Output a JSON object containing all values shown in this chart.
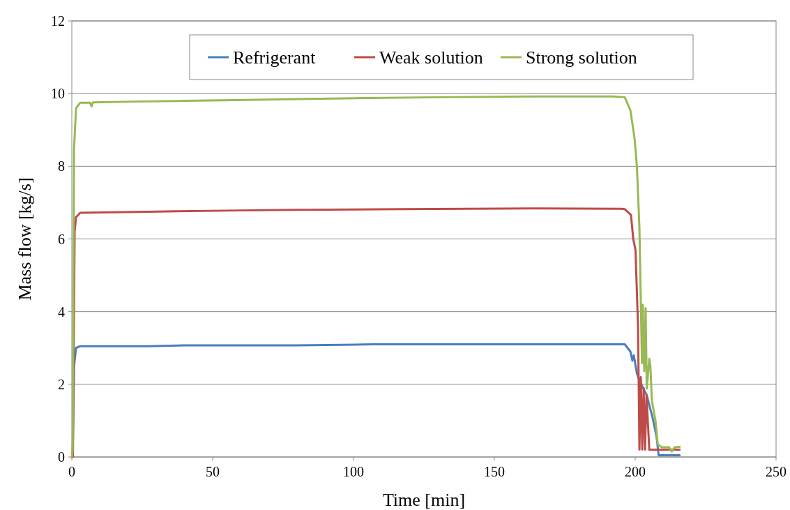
{
  "chart_data": {
    "type": "line",
    "xlabel": "Time [min]",
    "ylabel": "Mass flow [kg/s]",
    "xlim": [
      0,
      250
    ],
    "xticks": [
      0,
      50,
      100,
      150,
      200,
      250
    ],
    "ylim": [
      0,
      12
    ],
    "yticks": [
      0,
      2,
      4,
      6,
      8,
      10,
      12
    ],
    "grid": "y",
    "legend": "top",
    "marker": "none",
    "line_style": "solid",
    "series": [
      {
        "name": "Refrigerant",
        "color": "#4a7ebb",
        "x": [
          0,
          0.3,
          0.8,
          1.5,
          3,
          27,
          40,
          80,
          107,
          150,
          196.3,
          198.3,
          199,
          199.5,
          200.6,
          201.5,
          204.1,
          206.2,
          207.6,
          208.3,
          212,
          215.8
        ],
        "values": [
          0.1,
          0.1,
          2.5,
          3.0,
          3.05,
          3.05,
          3.07,
          3.07,
          3.1,
          3.1,
          3.1,
          2.9,
          2.65,
          2.8,
          2.3,
          2.1,
          1.7,
          1.07,
          0.55,
          0.05,
          0.05,
          0.05
        ]
      },
      {
        "name": "Weak solution",
        "color": "#be4b48",
        "x": [
          0,
          0.4,
          1,
          1.5,
          3,
          27,
          55,
          80,
          117,
          165,
          195,
          196.3,
          198.5,
          199.3,
          200.1,
          201,
          201.5,
          202,
          202.5,
          203,
          203.5,
          204,
          205,
          210,
          215.8
        ],
        "values": [
          0,
          0,
          6.2,
          6.6,
          6.72,
          6.75,
          6.78,
          6.8,
          6.82,
          6.84,
          6.83,
          6.82,
          6.66,
          6.0,
          5.7,
          3.6,
          0.2,
          2.2,
          0.2,
          1.9,
          0.2,
          1.7,
          0.2,
          0.2,
          0.2
        ]
      },
      {
        "name": "Strong solution",
        "color": "#98b954",
        "x": [
          0,
          0.3,
          0.8,
          1.5,
          3,
          6.5,
          7,
          7.5,
          22,
          40,
          58,
          80,
          105,
          130,
          165,
          192,
          196.3,
          198.3,
          199.8,
          200.6,
          201.5,
          202,
          202.4,
          202.7,
          203.2,
          203.7,
          204.1,
          205,
          205.4,
          205.9,
          207.2,
          208,
          209.4,
          212,
          213,
          214,
          215.8
        ],
        "values": [
          0,
          0.2,
          8.5,
          9.6,
          9.75,
          9.75,
          9.65,
          9.76,
          9.78,
          9.8,
          9.82,
          9.85,
          9.88,
          9.9,
          9.92,
          9.92,
          9.9,
          9.54,
          8.75,
          8.0,
          6.3,
          4.25,
          2.58,
          4.19,
          2.36,
          4.1,
          1.88,
          2.7,
          2.5,
          1.55,
          1.0,
          0.35,
          0.27,
          0.27,
          0.15,
          0.27,
          0.28
        ]
      }
    ]
  }
}
